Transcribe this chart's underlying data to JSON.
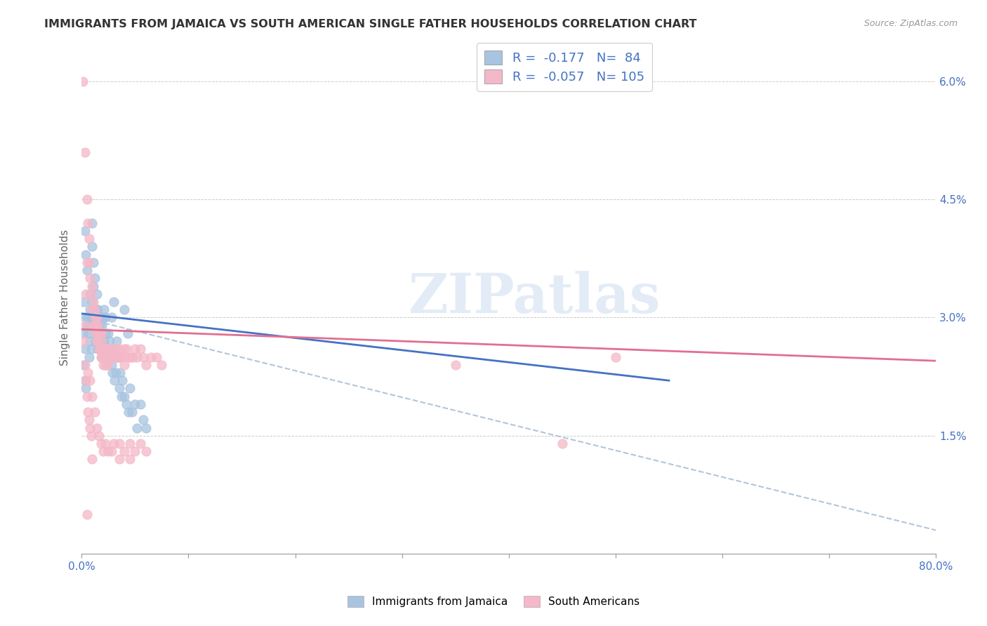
{
  "title": "IMMIGRANTS FROM JAMAICA VS SOUTH AMERICAN SINGLE FATHER HOUSEHOLDS CORRELATION CHART",
  "source": "Source: ZipAtlas.com",
  "ylabel": "Single Father Households",
  "x_min": 0.0,
  "x_max": 0.8,
  "y_min": 0.0,
  "y_max": 0.065,
  "x_tick_positions": [
    0.0,
    0.1,
    0.2,
    0.3,
    0.4,
    0.5,
    0.6,
    0.7,
    0.8
  ],
  "x_tick_labels": [
    "0.0%",
    "",
    "",
    "",
    "",
    "",
    "",
    "",
    "80.0%"
  ],
  "y_tick_positions": [
    0.0,
    0.015,
    0.03,
    0.045,
    0.06
  ],
  "y_tick_labels_right": [
    "",
    "1.5%",
    "3.0%",
    "4.5%",
    "6.0%"
  ],
  "color_jamaica": "#a8c4e0",
  "color_south_american": "#f4b8c8",
  "color_jamaica_line": "#4472c4",
  "color_south_american_line": "#e07090",
  "color_dashed_line": "#a0b8d0",
  "color_axis_labels": "#4472c4",
  "color_title": "#333333",
  "watermark_text": "ZIPatlas",
  "jamaica_R": -0.177,
  "jamaica_N": 84,
  "south_american_R": -0.057,
  "south_american_N": 105,
  "jamaica_line_x0": 0.0,
  "jamaica_line_y0": 0.0305,
  "jamaica_line_x1": 0.55,
  "jamaica_line_y1": 0.022,
  "south_line_x0": 0.0,
  "south_line_y0": 0.0285,
  "south_line_x1": 0.8,
  "south_line_y1": 0.0245,
  "dashed_line_x0": 0.0,
  "dashed_line_y0": 0.03,
  "dashed_line_x1": 0.8,
  "dashed_line_y1": 0.003,
  "jamaica_scatter": [
    [
      0.002,
      0.032
    ],
    [
      0.003,
      0.03
    ],
    [
      0.003,
      0.041
    ],
    [
      0.004,
      0.038
    ],
    [
      0.005,
      0.036
    ],
    [
      0.005,
      0.029
    ],
    [
      0.006,
      0.03
    ],
    [
      0.006,
      0.028
    ],
    [
      0.007,
      0.029
    ],
    [
      0.007,
      0.025
    ],
    [
      0.008,
      0.033
    ],
    [
      0.008,
      0.031
    ],
    [
      0.008,
      0.027
    ],
    [
      0.009,
      0.03
    ],
    [
      0.009,
      0.026
    ],
    [
      0.01,
      0.042
    ],
    [
      0.01,
      0.039
    ],
    [
      0.01,
      0.032
    ],
    [
      0.011,
      0.037
    ],
    [
      0.011,
      0.034
    ],
    [
      0.011,
      0.03
    ],
    [
      0.012,
      0.035
    ],
    [
      0.012,
      0.031
    ],
    [
      0.012,
      0.028
    ],
    [
      0.013,
      0.031
    ],
    [
      0.013,
      0.029
    ],
    [
      0.013,
      0.027
    ],
    [
      0.014,
      0.033
    ],
    [
      0.014,
      0.031
    ],
    [
      0.014,
      0.029
    ],
    [
      0.015,
      0.031
    ],
    [
      0.015,
      0.028
    ],
    [
      0.015,
      0.026
    ],
    [
      0.016,
      0.03
    ],
    [
      0.016,
      0.028
    ],
    [
      0.016,
      0.026
    ],
    [
      0.017,
      0.029
    ],
    [
      0.017,
      0.027
    ],
    [
      0.018,
      0.03
    ],
    [
      0.018,
      0.027
    ],
    [
      0.019,
      0.029
    ],
    [
      0.019,
      0.025
    ],
    [
      0.02,
      0.03
    ],
    [
      0.02,
      0.027
    ],
    [
      0.021,
      0.031
    ],
    [
      0.021,
      0.027
    ],
    [
      0.022,
      0.03
    ],
    [
      0.022,
      0.026
    ],
    [
      0.023,
      0.028
    ],
    [
      0.024,
      0.026
    ],
    [
      0.025,
      0.028
    ],
    [
      0.025,
      0.025
    ],
    [
      0.026,
      0.027
    ],
    [
      0.027,
      0.026
    ],
    [
      0.028,
      0.03
    ],
    [
      0.028,
      0.024
    ],
    [
      0.029,
      0.023
    ],
    [
      0.03,
      0.032
    ],
    [
      0.031,
      0.022
    ],
    [
      0.032,
      0.023
    ],
    [
      0.033,
      0.027
    ],
    [
      0.034,
      0.025
    ],
    [
      0.035,
      0.021
    ],
    [
      0.036,
      0.023
    ],
    [
      0.037,
      0.02
    ],
    [
      0.038,
      0.022
    ],
    [
      0.04,
      0.031
    ],
    [
      0.04,
      0.02
    ],
    [
      0.042,
      0.019
    ],
    [
      0.043,
      0.028
    ],
    [
      0.044,
      0.018
    ],
    [
      0.045,
      0.021
    ],
    [
      0.047,
      0.018
    ],
    [
      0.05,
      0.019
    ],
    [
      0.052,
      0.016
    ],
    [
      0.055,
      0.019
    ],
    [
      0.058,
      0.017
    ],
    [
      0.06,
      0.016
    ],
    [
      0.002,
      0.024
    ],
    [
      0.003,
      0.022
    ],
    [
      0.004,
      0.021
    ],
    [
      0.002,
      0.028
    ],
    [
      0.003,
      0.026
    ]
  ],
  "south_american_scatter": [
    [
      0.001,
      0.06
    ],
    [
      0.003,
      0.051
    ],
    [
      0.005,
      0.045
    ],
    [
      0.006,
      0.042
    ],
    [
      0.007,
      0.04
    ],
    [
      0.007,
      0.037
    ],
    [
      0.008,
      0.035
    ],
    [
      0.009,
      0.033
    ],
    [
      0.01,
      0.034
    ],
    [
      0.01,
      0.031
    ],
    [
      0.011,
      0.032
    ],
    [
      0.011,
      0.029
    ],
    [
      0.012,
      0.031
    ],
    [
      0.012,
      0.029
    ],
    [
      0.013,
      0.03
    ],
    [
      0.013,
      0.028
    ],
    [
      0.014,
      0.03
    ],
    [
      0.014,
      0.027
    ],
    [
      0.015,
      0.029
    ],
    [
      0.015,
      0.027
    ],
    [
      0.016,
      0.028
    ],
    [
      0.016,
      0.026
    ],
    [
      0.017,
      0.028
    ],
    [
      0.017,
      0.026
    ],
    [
      0.018,
      0.028
    ],
    [
      0.018,
      0.026
    ],
    [
      0.018,
      0.025
    ],
    [
      0.019,
      0.027
    ],
    [
      0.019,
      0.025
    ],
    [
      0.02,
      0.026
    ],
    [
      0.02,
      0.025
    ],
    [
      0.02,
      0.024
    ],
    [
      0.021,
      0.026
    ],
    [
      0.021,
      0.025
    ],
    [
      0.022,
      0.025
    ],
    [
      0.022,
      0.024
    ],
    [
      0.023,
      0.025
    ],
    [
      0.023,
      0.024
    ],
    [
      0.024,
      0.026
    ],
    [
      0.024,
      0.024
    ],
    [
      0.025,
      0.025
    ],
    [
      0.026,
      0.026
    ],
    [
      0.026,
      0.025
    ],
    [
      0.027,
      0.026
    ],
    [
      0.027,
      0.025
    ],
    [
      0.028,
      0.026
    ],
    [
      0.028,
      0.025
    ],
    [
      0.029,
      0.025
    ],
    [
      0.03,
      0.026
    ],
    [
      0.03,
      0.025
    ],
    [
      0.031,
      0.025
    ],
    [
      0.032,
      0.026
    ],
    [
      0.033,
      0.025
    ],
    [
      0.034,
      0.025
    ],
    [
      0.035,
      0.026
    ],
    [
      0.036,
      0.025
    ],
    [
      0.037,
      0.025
    ],
    [
      0.038,
      0.025
    ],
    [
      0.04,
      0.026
    ],
    [
      0.04,
      0.024
    ],
    [
      0.042,
      0.026
    ],
    [
      0.044,
      0.025
    ],
    [
      0.046,
      0.025
    ],
    [
      0.048,
      0.025
    ],
    [
      0.05,
      0.026
    ],
    [
      0.052,
      0.025
    ],
    [
      0.055,
      0.026
    ],
    [
      0.058,
      0.025
    ],
    [
      0.06,
      0.024
    ],
    [
      0.065,
      0.025
    ],
    [
      0.07,
      0.025
    ],
    [
      0.075,
      0.024
    ],
    [
      0.5,
      0.025
    ],
    [
      0.006,
      0.023
    ],
    [
      0.008,
      0.022
    ],
    [
      0.01,
      0.02
    ],
    [
      0.012,
      0.018
    ],
    [
      0.014,
      0.016
    ],
    [
      0.016,
      0.015
    ],
    [
      0.018,
      0.014
    ],
    [
      0.02,
      0.013
    ],
    [
      0.022,
      0.014
    ],
    [
      0.025,
      0.013
    ],
    [
      0.028,
      0.013
    ],
    [
      0.03,
      0.014
    ],
    [
      0.035,
      0.014
    ],
    [
      0.04,
      0.013
    ],
    [
      0.045,
      0.014
    ],
    [
      0.05,
      0.013
    ],
    [
      0.055,
      0.014
    ],
    [
      0.06,
      0.013
    ],
    [
      0.35,
      0.024
    ],
    [
      0.45,
      0.014
    ],
    [
      0.002,
      0.027
    ],
    [
      0.003,
      0.029
    ],
    [
      0.004,
      0.033
    ],
    [
      0.005,
      0.037
    ],
    [
      0.003,
      0.024
    ],
    [
      0.004,
      0.022
    ],
    [
      0.005,
      0.02
    ],
    [
      0.006,
      0.018
    ],
    [
      0.007,
      0.017
    ],
    [
      0.008,
      0.016
    ],
    [
      0.009,
      0.015
    ],
    [
      0.01,
      0.012
    ],
    [
      0.035,
      0.012
    ],
    [
      0.045,
      0.012
    ],
    [
      0.005,
      0.005
    ]
  ]
}
